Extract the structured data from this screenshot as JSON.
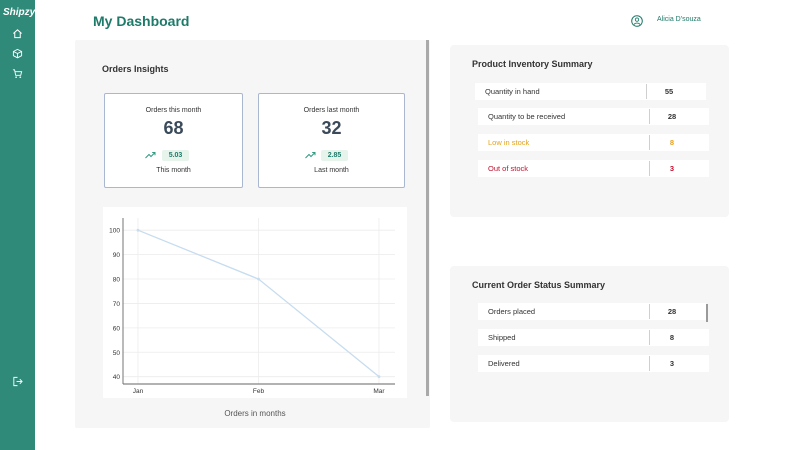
{
  "app": {
    "logo": "Shipzy"
  },
  "sidebar": {
    "items": [
      {
        "icon": "home-icon"
      },
      {
        "icon": "box-icon"
      },
      {
        "icon": "cart-icon"
      }
    ],
    "footer_icon": "logout-icon"
  },
  "header": {
    "title": "My Dashboard",
    "user_icon": "user-icon",
    "user_name": "Alicia D'souza"
  },
  "insights": {
    "title": "Orders Insights",
    "cards": [
      {
        "label": "Orders this month",
        "value": "68",
        "delta": "5.03",
        "caption": "This month"
      },
      {
        "label": "Orders last month",
        "value": "32",
        "delta": "2.85",
        "caption": "Last month"
      }
    ],
    "chart_caption": "Orders in months"
  },
  "inventory": {
    "title": "Product Inventory Summary",
    "rows": [
      {
        "label": "Quantity in hand",
        "value": "55",
        "color": "#333333"
      },
      {
        "label": "Quantity to be received",
        "value": "28",
        "color": "#333333"
      },
      {
        "label": "Low in stock",
        "value": "8",
        "color": "#e5a21b"
      },
      {
        "label": "Out of stock",
        "value": "3",
        "color": "#c0102e"
      }
    ]
  },
  "order_status": {
    "title": "Current Order Status Summary",
    "rows": [
      {
        "label": "Orders placed",
        "value": "28"
      },
      {
        "label": "Shipped",
        "value": "8"
      },
      {
        "label": "Delivered",
        "value": "3"
      }
    ]
  },
  "colors": {
    "sidebar": "#2f8a7a",
    "accent": "#1e7a69",
    "line": "#c6dcef",
    "warning": "#e5a21b",
    "danger": "#c0102e"
  },
  "chart_data": {
    "type": "line",
    "title": "",
    "xlabel": "",
    "ylabel": "",
    "categories": [
      "Jan",
      "Feb",
      "Mar"
    ],
    "values": [
      100,
      80,
      40
    ],
    "yticks": [
      100,
      90,
      80,
      70,
      60,
      50,
      40
    ],
    "ylim": [
      37,
      105
    ],
    "grid": true
  }
}
